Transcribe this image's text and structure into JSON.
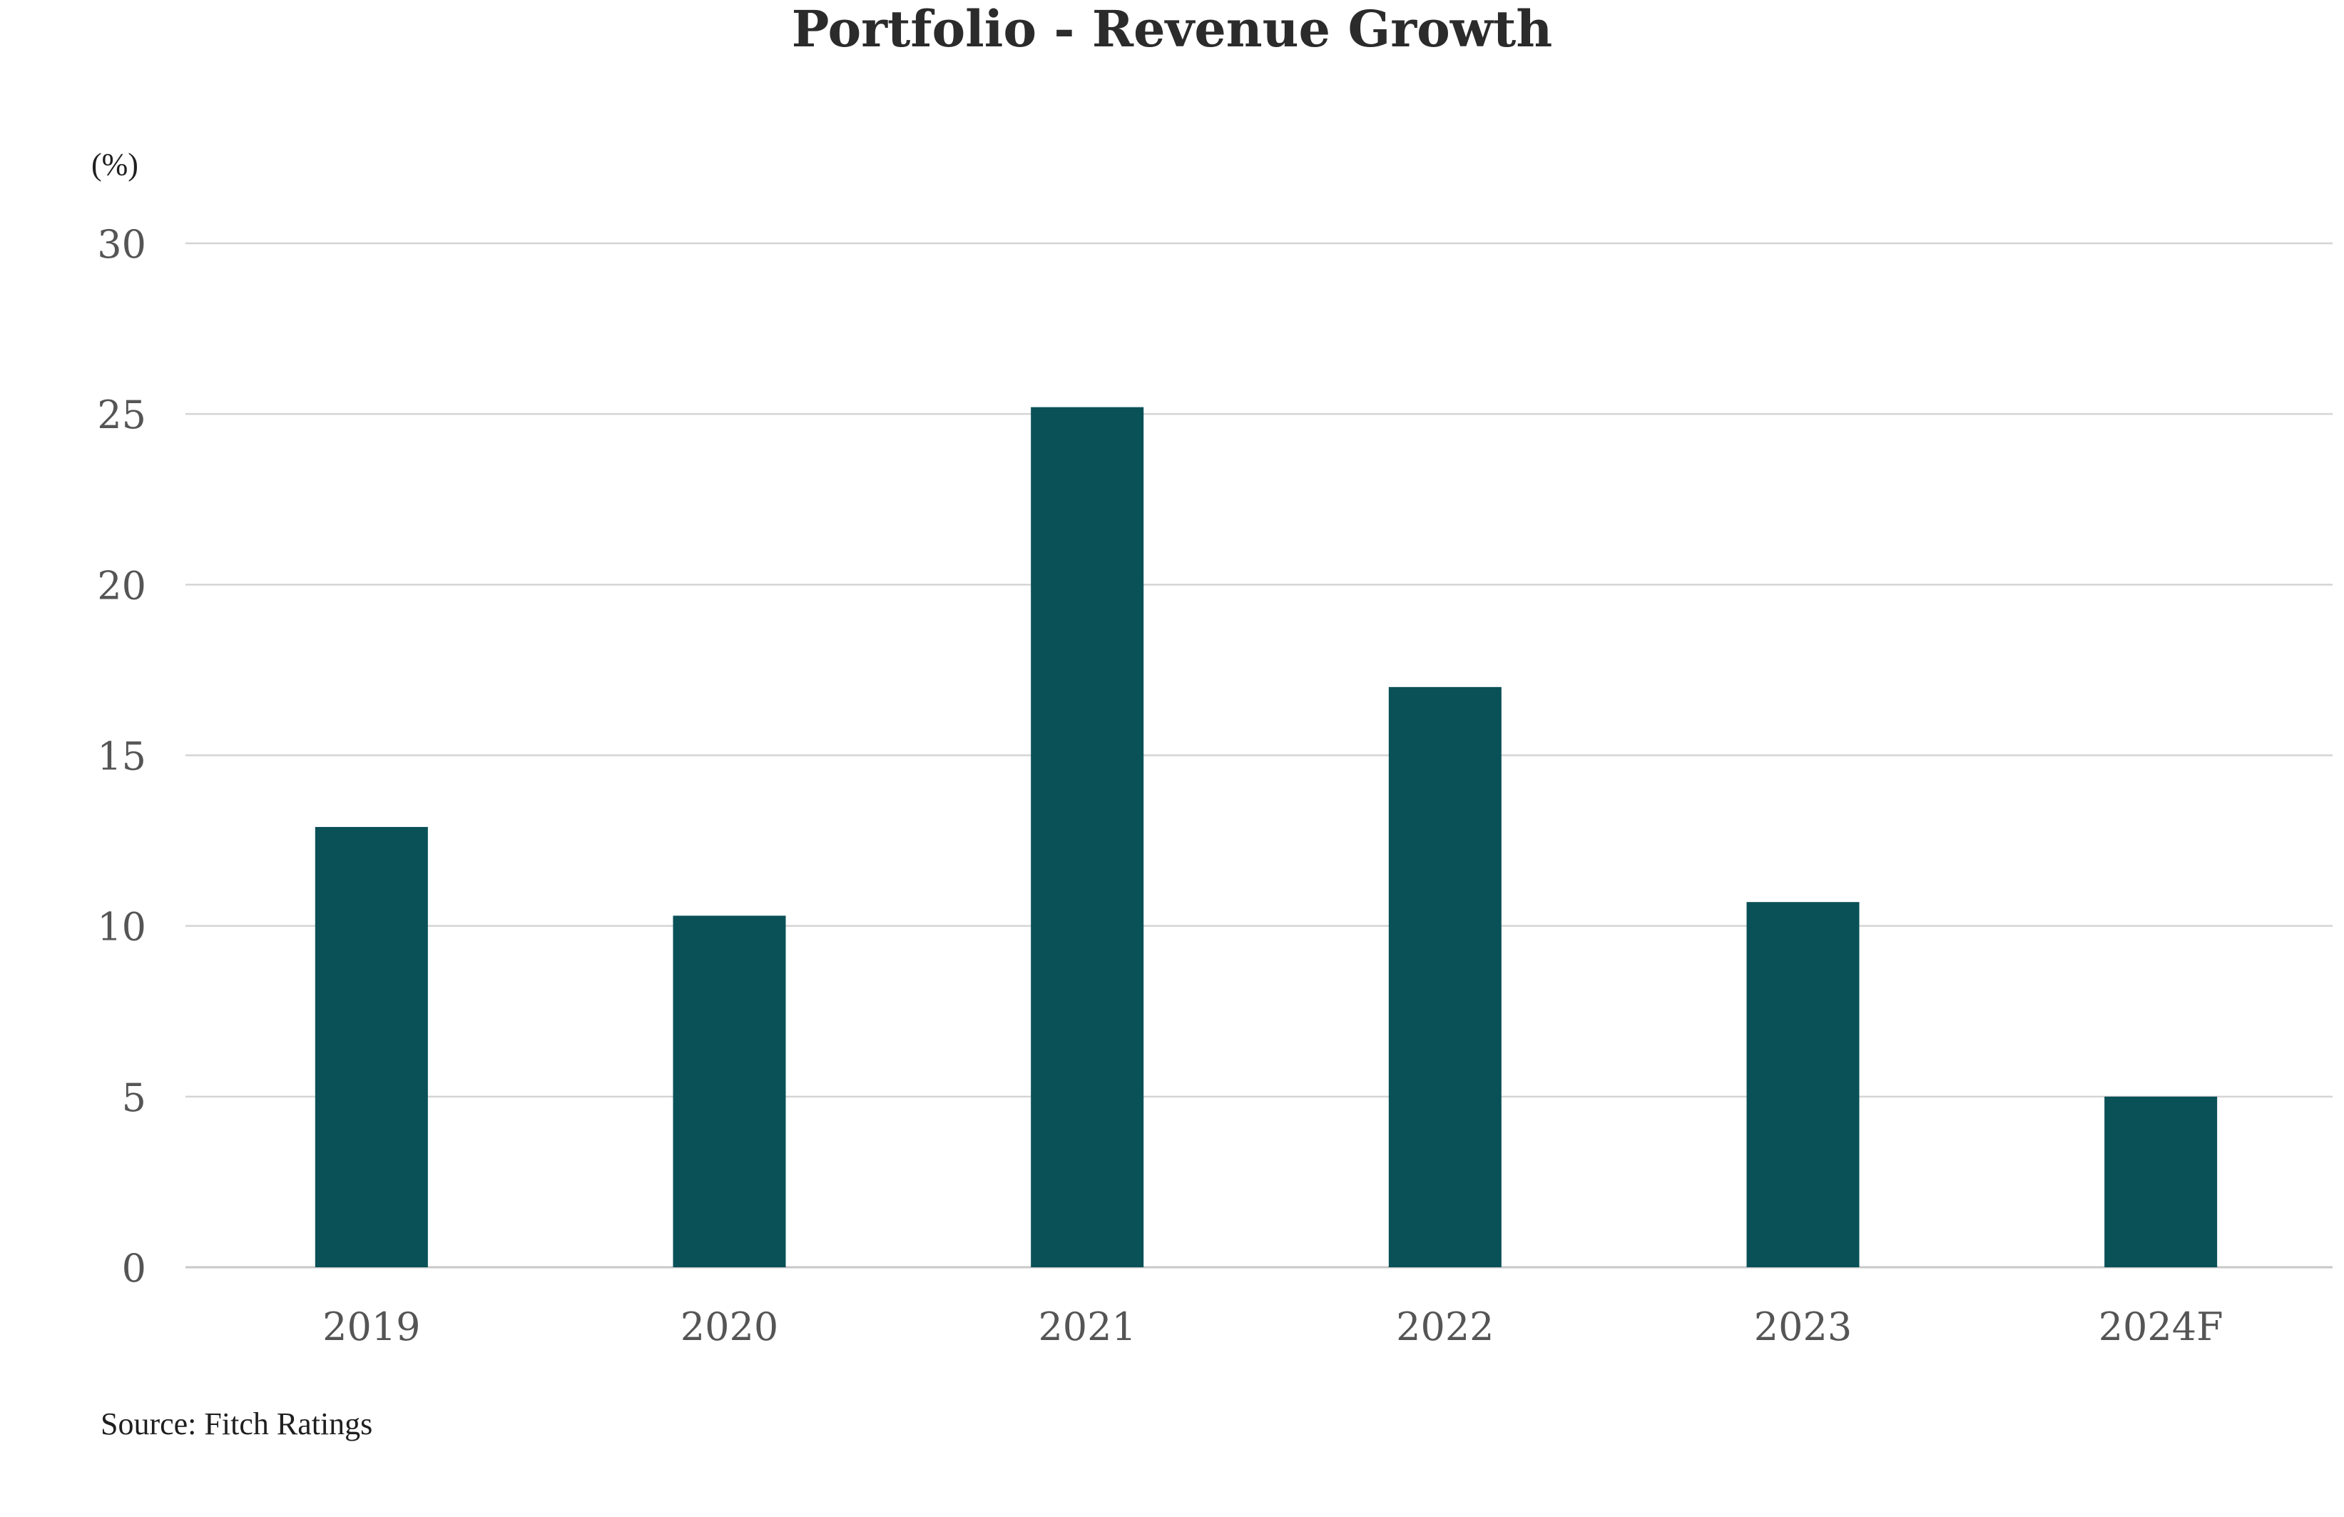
{
  "chart_data": {
    "type": "bar",
    "title": "Portfolio - Revenue Growth",
    "ylabel": "(%)",
    "xlabel": "",
    "categories": [
      "2019",
      "2020",
      "2021",
      "2022",
      "2023",
      "2024F"
    ],
    "series": [
      {
        "name": "Revenue Growth",
        "values": [
          12.9,
          10.3,
          25.2,
          17.0,
          10.7,
          5.0
        ]
      }
    ],
    "ylim": [
      0,
      30
    ],
    "yticks": [
      0,
      5,
      10,
      15,
      20,
      25,
      30
    ],
    "ytick_labels": [
      "0",
      "5",
      "10",
      "15",
      "20",
      "25",
      "30"
    ],
    "grid": true,
    "legend": "none",
    "source": "Source: Fitch Ratings",
    "colors": {
      "bar": "#0a5057",
      "grid": "#d4d4d4",
      "text": "#2b2b2b"
    }
  }
}
